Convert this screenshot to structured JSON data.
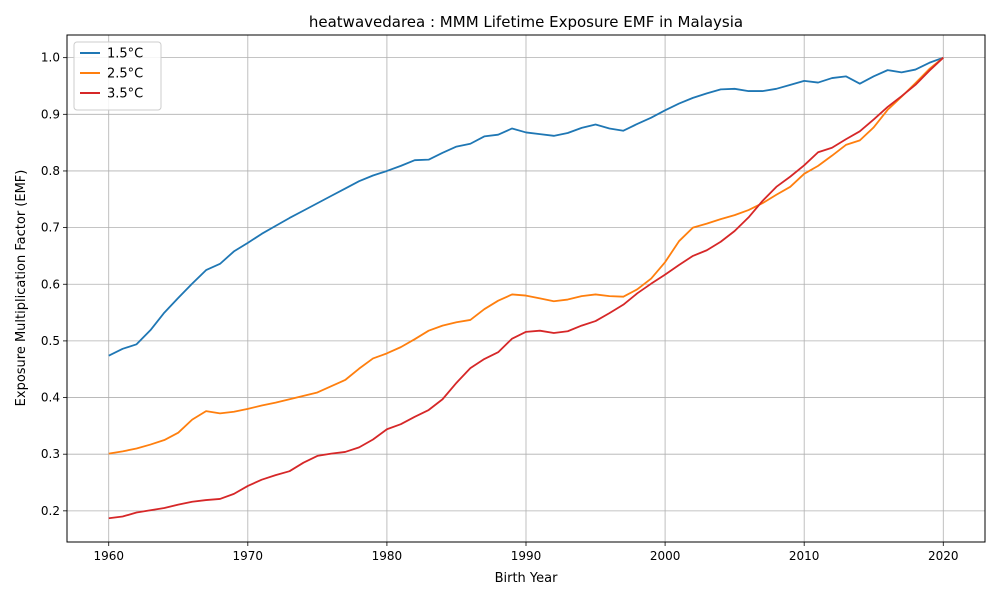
{
  "chart_data": {
    "type": "line",
    "title": "heatwavedarea : MMM Lifetime Exposure EMF in Malaysia",
    "xlabel": "Birth Year",
    "ylabel": "Exposure Multiplication Factor (EMF)",
    "xlim": [
      1957,
      2023
    ],
    "ylim": [
      0.145,
      1.04
    ],
    "xticks": [
      1960,
      1970,
      1980,
      1990,
      2000,
      2010,
      2020
    ],
    "yticks": [
      0.2,
      0.3,
      0.4,
      0.5,
      0.6,
      0.7,
      0.8,
      0.9,
      1.0
    ],
    "grid": true,
    "legend_position": "top-left",
    "x": [
      1960,
      1961,
      1962,
      1963,
      1964,
      1965,
      1966,
      1967,
      1968,
      1969,
      1970,
      1971,
      1972,
      1973,
      1974,
      1975,
      1976,
      1977,
      1978,
      1979,
      1980,
      1981,
      1982,
      1983,
      1984,
      1985,
      1986,
      1987,
      1988,
      1989,
      1990,
      1991,
      1992,
      1993,
      1994,
      1995,
      1996,
      1997,
      1998,
      1999,
      2000,
      2001,
      2002,
      2003,
      2004,
      2005,
      2006,
      2007,
      2008,
      2009,
      2010,
      2011,
      2012,
      2013,
      2014,
      2015,
      2016,
      2017,
      2018,
      2019,
      2020
    ],
    "series": [
      {
        "name": "1.5°C",
        "color": "#1f77b4",
        "values": [
          0.474,
          0.486,
          0.494,
          0.519,
          0.55,
          0.576,
          0.601,
          0.625,
          0.636,
          0.658,
          0.673,
          0.689,
          0.703,
          0.717,
          0.73,
          0.743,
          0.756,
          0.769,
          0.782,
          0.792,
          0.8,
          0.809,
          0.819,
          0.82,
          0.832,
          0.843,
          0.848,
          0.861,
          0.864,
          0.875,
          0.868,
          0.865,
          0.862,
          0.867,
          0.876,
          0.882,
          0.875,
          0.871,
          0.883,
          0.894,
          0.907,
          0.919,
          0.929,
          0.937,
          0.944,
          0.945,
          0.941,
          0.941,
          0.945,
          0.952,
          0.959,
          0.956,
          0.964,
          0.967,
          0.954,
          0.967,
          0.978,
          0.974,
          0.979,
          0.991,
          1.0
        ]
      },
      {
        "name": "2.5°C",
        "color": "#ff7f0e",
        "values": [
          0.301,
          0.305,
          0.31,
          0.317,
          0.325,
          0.338,
          0.361,
          0.376,
          0.372,
          0.375,
          0.38,
          0.386,
          0.391,
          0.397,
          0.403,
          0.409,
          0.42,
          0.431,
          0.451,
          0.469,
          0.478,
          0.489,
          0.503,
          0.518,
          0.527,
          0.533,
          0.537,
          0.556,
          0.571,
          0.582,
          0.58,
          0.575,
          0.57,
          0.573,
          0.579,
          0.582,
          0.579,
          0.578,
          0.591,
          0.61,
          0.639,
          0.676,
          0.7,
          0.707,
          0.715,
          0.722,
          0.731,
          0.743,
          0.758,
          0.772,
          0.795,
          0.809,
          0.827,
          0.846,
          0.854,
          0.877,
          0.908,
          0.931,
          0.955,
          0.98,
          1.0
        ]
      },
      {
        "name": "3.5°C",
        "color": "#d62728",
        "values": [
          0.187,
          0.19,
          0.197,
          0.201,
          0.205,
          0.211,
          0.216,
          0.219,
          0.221,
          0.23,
          0.244,
          0.255,
          0.263,
          0.27,
          0.285,
          0.297,
          0.301,
          0.304,
          0.312,
          0.326,
          0.344,
          0.353,
          0.366,
          0.378,
          0.397,
          0.426,
          0.452,
          0.468,
          0.48,
          0.504,
          0.516,
          0.518,
          0.514,
          0.517,
          0.527,
          0.535,
          0.549,
          0.564,
          0.584,
          0.601,
          0.617,
          0.634,
          0.65,
          0.66,
          0.675,
          0.694,
          0.718,
          0.747,
          0.772,
          0.79,
          0.81,
          0.833,
          0.841,
          0.856,
          0.87,
          0.891,
          0.913,
          0.932,
          0.952,
          0.977,
          1.0
        ]
      }
    ]
  }
}
